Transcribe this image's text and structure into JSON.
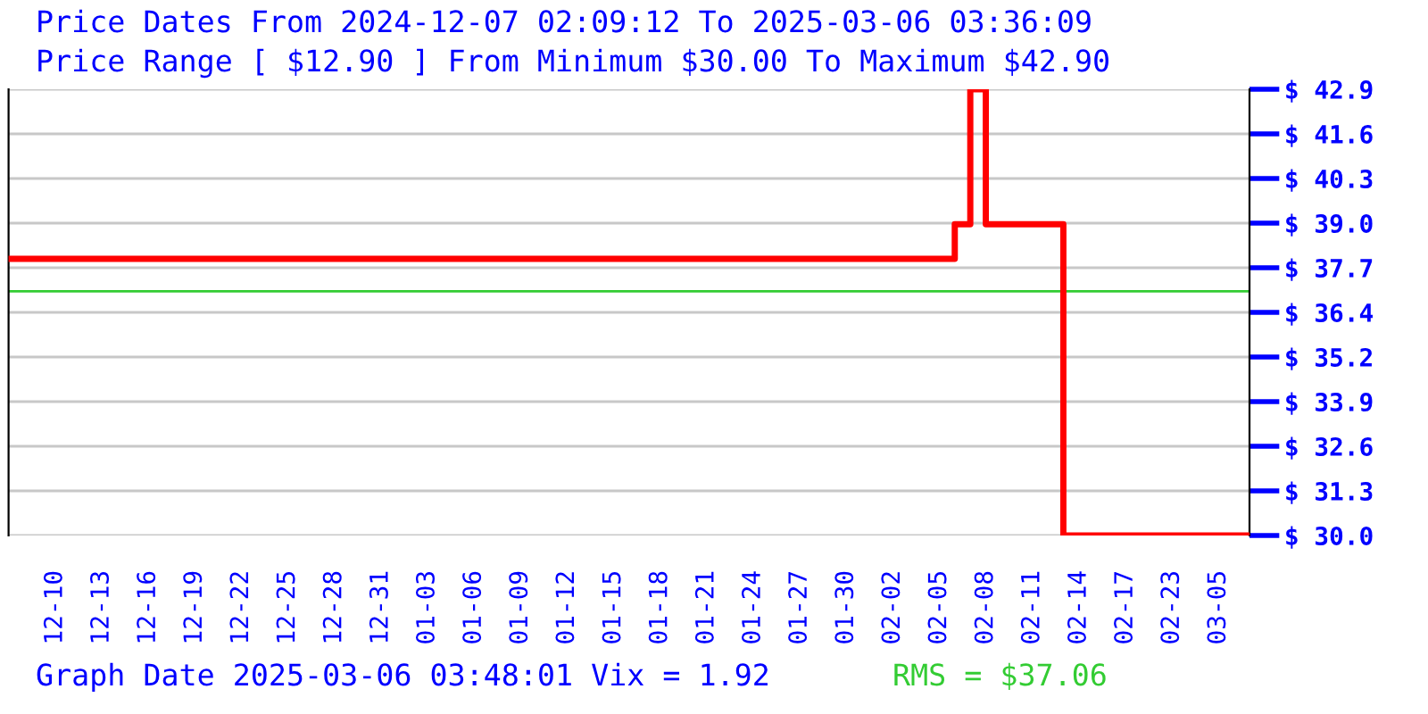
{
  "chart_data": {
    "type": "step",
    "title": "Price Dates From 2024-12-07 02:09:12 To 2025-03-06 03:36:09",
    "subtitle": "Price Range [ $12.90 ] From Minimum $30.00 To Maximum $42.90",
    "categories": [
      null,
      null,
      null,
      "12-10",
      null,
      null,
      "12-13",
      null,
      null,
      "12-16",
      null,
      null,
      "12-19",
      null,
      null,
      "12-22",
      null,
      null,
      "12-25",
      null,
      null,
      "12-28",
      null,
      null,
      "12-31",
      null,
      null,
      "01-03",
      null,
      null,
      "01-06",
      null,
      null,
      "01-09",
      null,
      null,
      "01-12",
      null,
      null,
      "01-15",
      null,
      null,
      "01-18",
      null,
      null,
      "01-21",
      null,
      null,
      "01-24",
      null,
      null,
      "01-27",
      null,
      null,
      "01-30",
      null,
      null,
      "02-02",
      null,
      null,
      "02-05",
      null,
      null,
      "02-08",
      null,
      null,
      "02-11",
      null,
      null,
      "02-14",
      null,
      null,
      "02-17",
      null,
      null,
      "02-23",
      null,
      null,
      "03-05",
      null,
      null
    ],
    "series": [
      {
        "color": "#ff0000",
        "values": [
          38.0,
          38.0,
          38.0,
          38.0,
          38.0,
          38.0,
          38.0,
          38.0,
          38.0,
          38.0,
          38.0,
          38.0,
          38.0,
          38.0,
          38.0,
          38.0,
          38.0,
          38.0,
          38.0,
          38.0,
          38.0,
          38.0,
          38.0,
          38.0,
          38.0,
          38.0,
          38.0,
          38.0,
          38.0,
          38.0,
          38.0,
          38.0,
          38.0,
          38.0,
          38.0,
          38.0,
          38.0,
          38.0,
          38.0,
          38.0,
          38.0,
          38.0,
          38.0,
          38.0,
          38.0,
          38.0,
          38.0,
          38.0,
          38.0,
          38.0,
          38.0,
          38.0,
          38.0,
          38.0,
          38.0,
          38.0,
          38.0,
          38.0,
          38.0,
          38.0,
          38.0,
          39.0,
          42.9,
          39.0,
          39.0,
          39.0,
          39.0,
          39.0,
          30.0,
          30.0,
          30.0,
          30.0,
          30.0,
          30.0,
          30.0,
          30.0,
          30.0,
          30.0,
          30.0,
          30.0,
          30.0
        ]
      }
    ],
    "ylim": [
      30.0,
      42.9
    ],
    "yticks": [
      {
        "value": 30.0,
        "label": "$ 30.0"
      },
      {
        "value": 31.29,
        "label": "$ 31.3"
      },
      {
        "value": 32.58,
        "label": "$ 32.6"
      },
      {
        "value": 33.87,
        "label": "$ 33.9"
      },
      {
        "value": 35.16,
        "label": "$ 35.2"
      },
      {
        "value": 36.45,
        "label": "$ 36.4"
      },
      {
        "value": 37.74,
        "label": "$ 37.7"
      },
      {
        "value": 39.03,
        "label": "$ 39.0"
      },
      {
        "value": 40.32,
        "label": "$ 40.3"
      },
      {
        "value": 41.61,
        "label": "$ 41.6"
      },
      {
        "value": 42.9,
        "label": "$ 42.9"
      }
    ],
    "grid": "y",
    "ref_lines": [
      {
        "axis": "y",
        "value": 37.06,
        "label": "RMS = $37.06",
        "color": "#33cc33"
      }
    ],
    "annotations": [
      "Graph Date 2025-03-06 03:48:01 Vix = 1.92"
    ]
  }
}
